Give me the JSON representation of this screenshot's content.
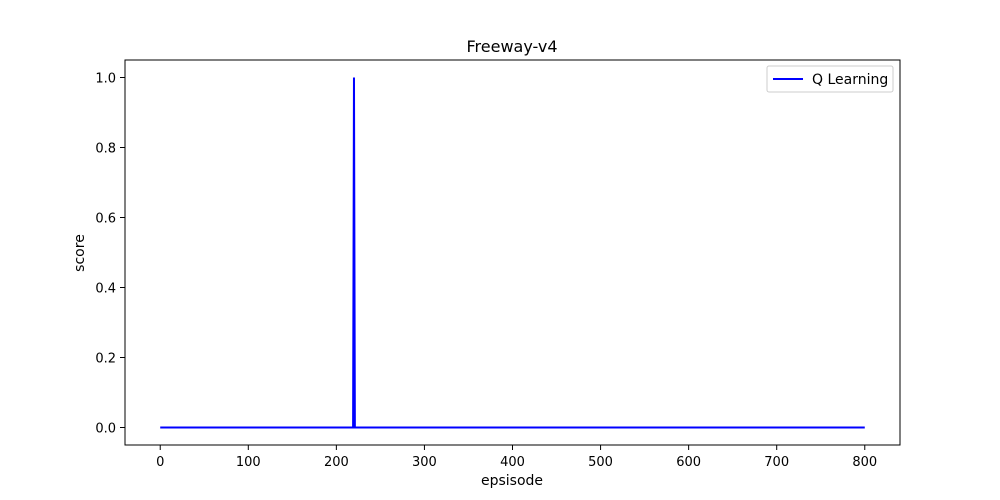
{
  "chart_data": {
    "type": "line",
    "title": "Freeway-v4",
    "xlabel": "epsisode",
    "ylabel": "score",
    "xlim": [
      -40,
      840
    ],
    "ylim": [
      -0.05,
      1.05
    ],
    "xticks": [
      0,
      100,
      200,
      300,
      400,
      500,
      600,
      700,
      800
    ],
    "yticks": [
      0.0,
      0.2,
      0.4,
      0.6,
      0.8,
      1.0
    ],
    "xtick_labels": [
      "0",
      "100",
      "200",
      "300",
      "400",
      "500",
      "600",
      "700",
      "800"
    ],
    "ytick_labels": [
      "0.0",
      "0.2",
      "0.4",
      "0.6",
      "0.8",
      "1.0"
    ],
    "grid": false,
    "legend": "top-right",
    "series": [
      {
        "name": "Q Learning",
        "color": "#0000ff",
        "x": [
          0,
          219,
          220,
          221,
          222,
          800
        ],
        "y": [
          0,
          0,
          1,
          0,
          0,
          0
        ]
      }
    ]
  }
}
